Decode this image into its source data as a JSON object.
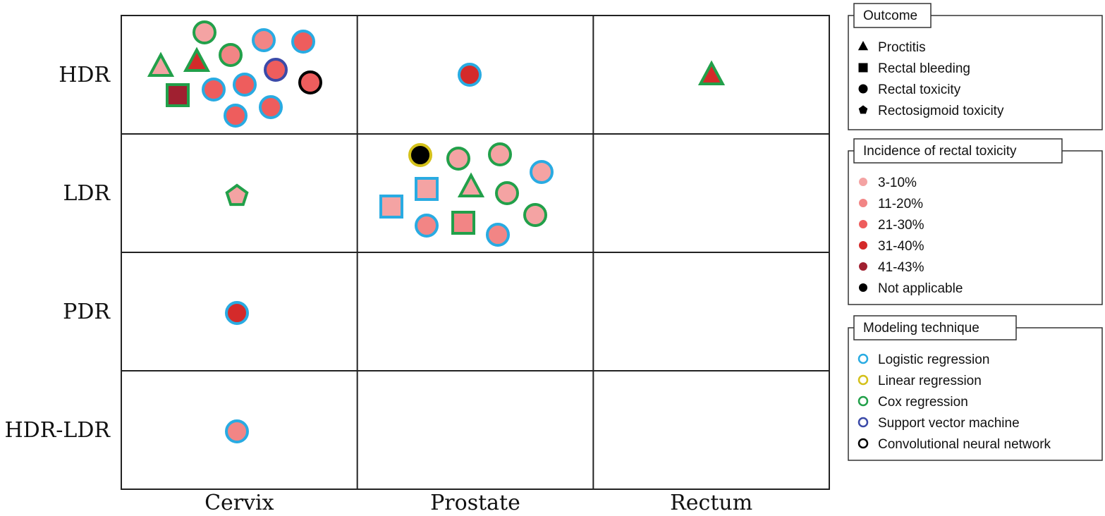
{
  "chart_data": {
    "type": "scatter",
    "title": "",
    "rows": [
      "HDR",
      "LDR",
      "PDR",
      "HDR-LDR"
    ],
    "columns": [
      "Cervix",
      "Prostate",
      "Rectum"
    ],
    "legend": {
      "outcome": {
        "title": "Outcome",
        "items": [
          {
            "label": "Proctitis",
            "shape": "triangle"
          },
          {
            "label": "Rectal bleeding",
            "shape": "square"
          },
          {
            "label": "Rectal toxicity",
            "shape": "circle"
          },
          {
            "label": "Rectosigmoid toxicity",
            "shape": "pentagon"
          }
        ]
      },
      "incidence": {
        "title": "Incidence of rectal toxicity",
        "items": [
          {
            "label": "3-10%",
            "color": "#f4a3a3"
          },
          {
            "label": "11-20%",
            "color": "#f28585"
          },
          {
            "label": "21-30%",
            "color": "#ee5d5d"
          },
          {
            "label": "31-40%",
            "color": "#d42a2a"
          },
          {
            "label": "41-43%",
            "color": "#a02030"
          },
          {
            "label": "Not applicable",
            "color": "#000000"
          }
        ]
      },
      "technique": {
        "title": "Modeling technique",
        "items": [
          {
            "label": "Logistic regression",
            "color": "#29abe2"
          },
          {
            "label": "Linear regression",
            "color": "#d4c11a"
          },
          {
            "label": "Cox regression",
            "color": "#22a04a"
          },
          {
            "label": "Support vector machine",
            "color": "#3b4aa8"
          },
          {
            "label": "Convolutional neural network",
            "color": "#000000"
          }
        ]
      }
    },
    "studies": [
      {
        "modality": "HDR",
        "site": "Cervix",
        "outcome": "Proctitis",
        "incidence": "3-10%",
        "technique": "Cox regression"
      },
      {
        "modality": "HDR",
        "site": "Cervix",
        "outcome": "Proctitis",
        "incidence": "31-40%",
        "technique": "Cox regression"
      },
      {
        "modality": "HDR",
        "site": "Cervix",
        "outcome": "Rectal bleeding",
        "incidence": "41-43%",
        "technique": "Cox regression"
      },
      {
        "modality": "HDR",
        "site": "Cervix",
        "outcome": "Rectal toxicity",
        "incidence": "3-10%",
        "technique": "Cox regression"
      },
      {
        "modality": "HDR",
        "site": "Cervix",
        "outcome": "Rectal toxicity",
        "incidence": "11-20%",
        "technique": "Cox regression"
      },
      {
        "modality": "HDR",
        "site": "Cervix",
        "outcome": "Rectal toxicity",
        "incidence": "11-20%",
        "technique": "Logistic regression"
      },
      {
        "modality": "HDR",
        "site": "Cervix",
        "outcome": "Rectal toxicity",
        "incidence": "21-30%",
        "technique": "Support vector machine"
      },
      {
        "modality": "HDR",
        "site": "Cervix",
        "outcome": "Rectal toxicity",
        "incidence": "21-30%",
        "technique": "Logistic regression"
      },
      {
        "modality": "HDR",
        "site": "Cervix",
        "outcome": "Rectal toxicity",
        "incidence": "21-30%",
        "technique": "Logistic regression"
      },
      {
        "modality": "HDR",
        "site": "Cervix",
        "outcome": "Rectal toxicity",
        "incidence": "21-30%",
        "technique": "Logistic regression"
      },
      {
        "modality": "HDR",
        "site": "Cervix",
        "outcome": "Rectal toxicity",
        "incidence": "21-30%",
        "technique": "Convolutional neural network"
      },
      {
        "modality": "HDR",
        "site": "Cervix",
        "outcome": "Rectal toxicity",
        "incidence": "21-30%",
        "technique": "Logistic regression"
      },
      {
        "modality": "HDR",
        "site": "Cervix",
        "outcome": "Rectal toxicity",
        "incidence": "21-30%",
        "technique": "Logistic regression"
      },
      {
        "modality": "HDR",
        "site": "Prostate",
        "outcome": "Rectal toxicity",
        "incidence": "31-40%",
        "technique": "Logistic regression"
      },
      {
        "modality": "HDR",
        "site": "Rectum",
        "outcome": "Proctitis",
        "incidence": "31-40%",
        "technique": "Cox regression"
      },
      {
        "modality": "LDR",
        "site": "Cervix",
        "outcome": "Rectosigmoid toxicity",
        "incidence": "3-10%",
        "technique": "Cox regression"
      },
      {
        "modality": "LDR",
        "site": "Prostate",
        "outcome": "Rectal toxicity",
        "incidence": "Not applicable",
        "technique": "Linear regression"
      },
      {
        "modality": "LDR",
        "site": "Prostate",
        "outcome": "Rectal toxicity",
        "incidence": "3-10%",
        "technique": "Cox regression"
      },
      {
        "modality": "LDR",
        "site": "Prostate",
        "outcome": "Rectal toxicity",
        "incidence": "3-10%",
        "technique": "Cox regression"
      },
      {
        "modality": "LDR",
        "site": "Prostate",
        "outcome": "Rectal toxicity",
        "incidence": "3-10%",
        "technique": "Logistic regression"
      },
      {
        "modality": "LDR",
        "site": "Prostate",
        "outcome": "Rectal bleeding",
        "incidence": "3-10%",
        "technique": "Logistic regression"
      },
      {
        "modality": "LDR",
        "site": "Prostate",
        "outcome": "Proctitis",
        "incidence": "3-10%",
        "technique": "Cox regression"
      },
      {
        "modality": "LDR",
        "site": "Prostate",
        "outcome": "Rectal toxicity",
        "incidence": "3-10%",
        "technique": "Cox regression"
      },
      {
        "modality": "LDR",
        "site": "Prostate",
        "outcome": "Rectal bleeding",
        "incidence": "3-10%",
        "technique": "Logistic regression"
      },
      {
        "modality": "LDR",
        "site": "Prostate",
        "outcome": "Rectal toxicity",
        "incidence": "11-20%",
        "technique": "Logistic regression"
      },
      {
        "modality": "LDR",
        "site": "Prostate",
        "outcome": "Rectal bleeding",
        "incidence": "11-20%",
        "technique": "Cox regression"
      },
      {
        "modality": "LDR",
        "site": "Prostate",
        "outcome": "Rectal toxicity",
        "incidence": "3-10%",
        "technique": "Cox regression"
      },
      {
        "modality": "LDR",
        "site": "Prostate",
        "outcome": "Rectal toxicity",
        "incidence": "11-20%",
        "technique": "Logistic regression"
      },
      {
        "modality": "PDR",
        "site": "Cervix",
        "outcome": "Rectal toxicity",
        "incidence": "31-40%",
        "technique": "Logistic regression"
      },
      {
        "modality": "HDR-LDR",
        "site": "Cervix",
        "outcome": "Rectal toxicity",
        "incidence": "11-20%",
        "technique": "Logistic regression"
      }
    ]
  }
}
